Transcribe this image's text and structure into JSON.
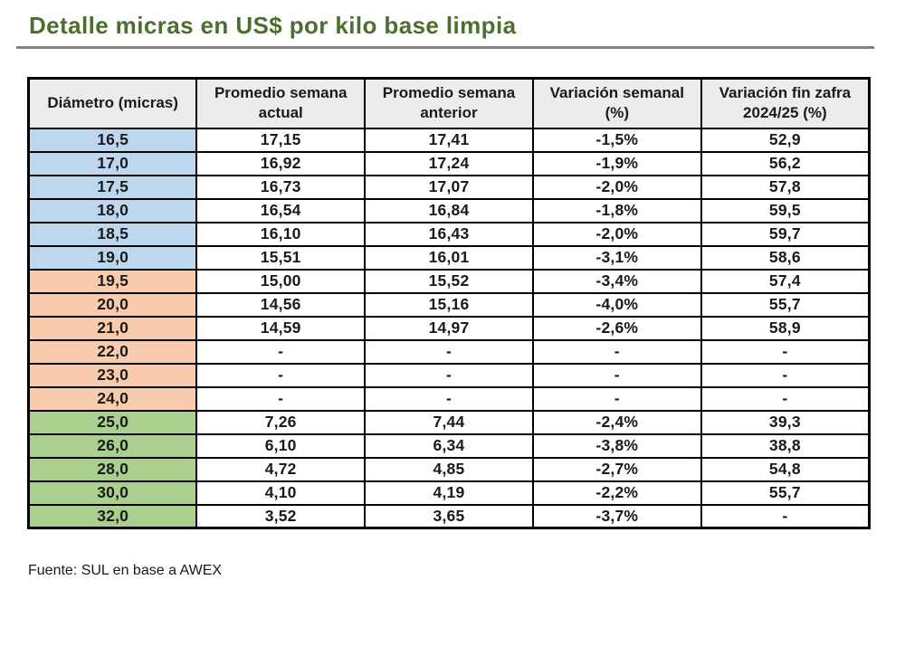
{
  "page": {
    "title": "Detalle micras en US$ por kilo base limpia",
    "source_note": "Fuente: SUL en base a AWEX"
  },
  "colors": {
    "title_green": "#4C6E2E",
    "rule_gray": "#828282",
    "header_bg": "#ECECEC",
    "group_blue": "#BDD7EE",
    "group_orange": "#F8CBAD",
    "group_green": "#A9D08E",
    "border_black": "#000000"
  },
  "table": {
    "headers": [
      "Diámetro (micras)",
      "Promedio semana actual",
      "Promedio semana anterior",
      "Variación semanal (%)",
      "Variación fin zafra 2024/25 (%)"
    ],
    "rows": [
      {
        "group": "blue",
        "cells": [
          "16,5",
          "17,15",
          "17,41",
          "-1,5%",
          "52,9"
        ]
      },
      {
        "group": "blue",
        "cells": [
          "17,0",
          "16,92",
          "17,24",
          "-1,9%",
          "56,2"
        ]
      },
      {
        "group": "blue",
        "cells": [
          "17,5",
          "16,73",
          "17,07",
          "-2,0%",
          "57,8"
        ]
      },
      {
        "group": "blue",
        "cells": [
          "18,0",
          "16,54",
          "16,84",
          "-1,8%",
          "59,5"
        ]
      },
      {
        "group": "blue",
        "cells": [
          "18,5",
          "16,10",
          "16,43",
          "-2,0%",
          "59,7"
        ]
      },
      {
        "group": "blue",
        "cells": [
          "19,0",
          "15,51",
          "16,01",
          "-3,1%",
          "58,6"
        ]
      },
      {
        "group": "orange",
        "cells": [
          "19,5",
          "15,00",
          "15,52",
          "-3,4%",
          "57,4"
        ]
      },
      {
        "group": "orange",
        "cells": [
          "20,0",
          "14,56",
          "15,16",
          "-4,0%",
          "55,7"
        ]
      },
      {
        "group": "orange",
        "cells": [
          "21,0",
          "14,59",
          "14,97",
          "-2,6%",
          "58,9"
        ]
      },
      {
        "group": "orange",
        "cells": [
          "22,0",
          "-",
          "-",
          "-",
          "-"
        ]
      },
      {
        "group": "orange",
        "cells": [
          "23,0",
          "-",
          "-",
          "-",
          "-"
        ]
      },
      {
        "group": "orange",
        "cells": [
          "24,0",
          "-",
          "-",
          "-",
          "-"
        ]
      },
      {
        "group": "green",
        "cells": [
          "25,0",
          "7,26",
          "7,44",
          "-2,4%",
          "39,3"
        ]
      },
      {
        "group": "green",
        "cells": [
          "26,0",
          "6,10",
          "6,34",
          "-3,8%",
          "38,8"
        ]
      },
      {
        "group": "green",
        "cells": [
          "28,0",
          "4,72",
          "4,85",
          "-2,7%",
          "54,8"
        ]
      },
      {
        "group": "green",
        "cells": [
          "30,0",
          "4,10",
          "4,19",
          "-2,2%",
          "55,7"
        ]
      },
      {
        "group": "green",
        "cells": [
          "32,0",
          "3,52",
          "3,65",
          "-3,7%",
          "-"
        ]
      }
    ]
  }
}
